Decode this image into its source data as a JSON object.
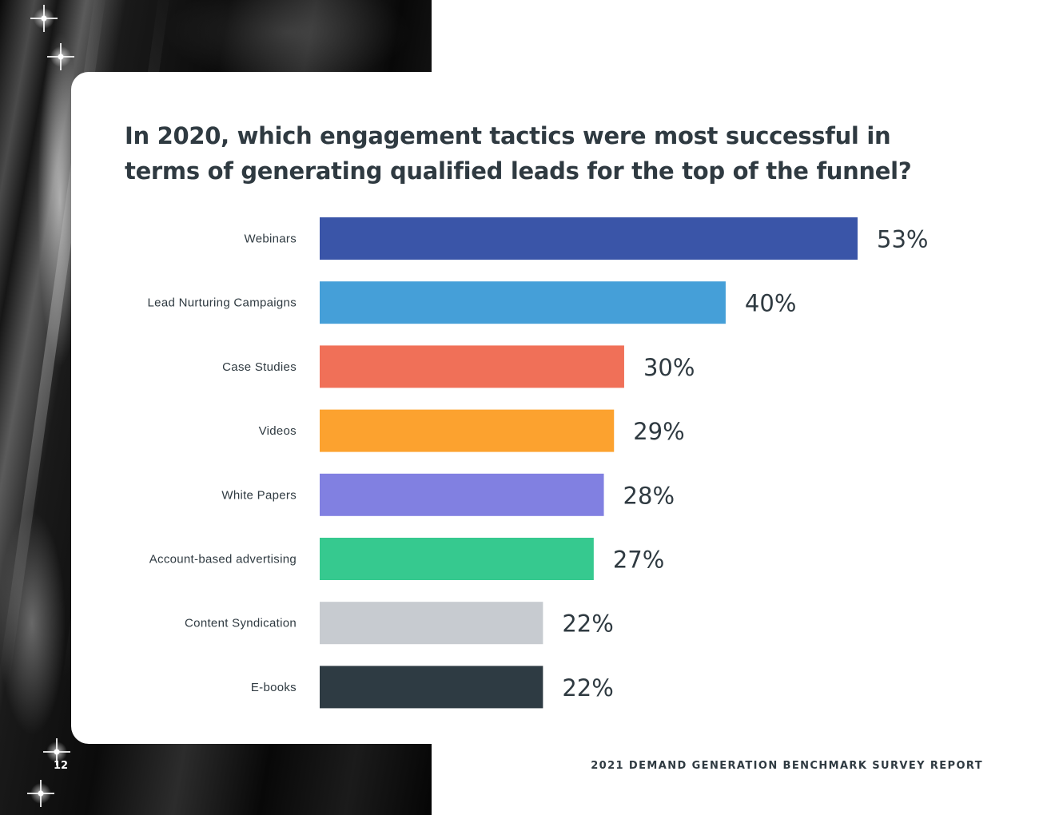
{
  "page": {
    "number": "12",
    "footer": "2021 DEMAND GENERATION BENCHMARK SURVEY REPORT"
  },
  "chart_data": {
    "type": "bar",
    "orientation": "horizontal",
    "title": "In 2020, which engagement tactics were most successful in terms of generating qualified leads for the top of the funnel?",
    "categories": [
      "Webinars",
      "Lead Nurturing Campaigns",
      "Case Studies",
      "Videos",
      "White Papers",
      "Account-based advertising",
      "Content Syndication",
      "E-books"
    ],
    "values": [
      53,
      40,
      30,
      29,
      28,
      27,
      22,
      22
    ],
    "value_labels": [
      "53%",
      "40%",
      "30%",
      "29%",
      "28%",
      "27%",
      "22%",
      "22%"
    ],
    "colors": [
      "#3a55a8",
      "#459fd8",
      "#f07058",
      "#fca22f",
      "#8180e1",
      "#36c98f",
      "#c7cbd0",
      "#2e3b43"
    ],
    "xlim": [
      0,
      53
    ],
    "grid": false,
    "legend": "none"
  }
}
